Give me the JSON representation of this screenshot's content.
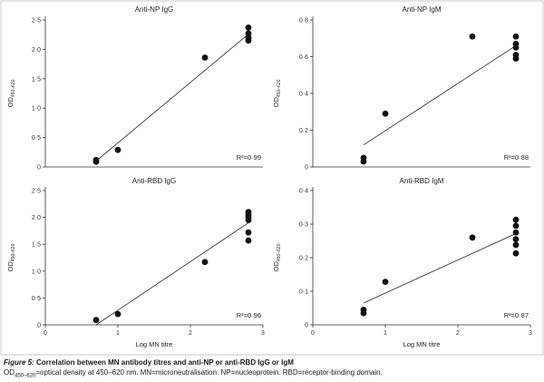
{
  "figure": {
    "label": "Figure 5:",
    "title": "Correlation between MN antibody titres and anti-NP or anti-RBD IgG or IgM",
    "footnote_od": "OD",
    "footnote_od_sub": "450–620",
    "footnote_text": "=optical density at 450–620 nm. MN=microneutralisation. NP=nucleoprotein. RBD=receptor-binding domain."
  },
  "chart_data": [
    {
      "type": "scatter",
      "title": "Anti-NP IgG",
      "xlabel": "",
      "ylabel": "OD",
      "ylabel_sub": "450–620",
      "xlim": [
        0,
        3
      ],
      "ylim": [
        0,
        2.5
      ],
      "x_ticks": [],
      "y_ticks": [
        0,
        0.5,
        1.0,
        1.5,
        2.0,
        2.5
      ],
      "y_tick_labels": [
        "0",
        "0·5",
        "1·0",
        "1·5",
        "2·0",
        "2·5"
      ],
      "points": [
        {
          "x": 0.7,
          "y": 0.09
        },
        {
          "x": 0.7,
          "y": 0.12
        },
        {
          "x": 1.0,
          "y": 0.29
        },
        {
          "x": 2.2,
          "y": 1.86
        },
        {
          "x": 2.8,
          "y": 2.15
        },
        {
          "x": 2.8,
          "y": 2.2
        },
        {
          "x": 2.8,
          "y": 2.27
        },
        {
          "x": 2.8,
          "y": 2.37
        }
      ],
      "fit_line": [
        {
          "x": 0.7,
          "y": 0.1
        },
        {
          "x": 2.8,
          "y": 2.26
        }
      ],
      "r2": "R²=0·99"
    },
    {
      "type": "scatter",
      "title": "Anti-NP IgM",
      "xlabel": "",
      "ylabel": "OD",
      "ylabel_sub": "450–620",
      "xlim": [
        0,
        3
      ],
      "ylim": [
        0,
        0.8
      ],
      "x_ticks": [],
      "y_ticks": [
        0,
        0.2,
        0.4,
        0.6,
        0.8
      ],
      "y_tick_labels": [
        "0",
        "0·2",
        "0·4",
        "0·6",
        "0·8"
      ],
      "points": [
        {
          "x": 0.7,
          "y": 0.03
        },
        {
          "x": 0.7,
          "y": 0.05
        },
        {
          "x": 1.0,
          "y": 0.29
        },
        {
          "x": 2.2,
          "y": 0.71
        },
        {
          "x": 2.8,
          "y": 0.59
        },
        {
          "x": 2.8,
          "y": 0.61
        },
        {
          "x": 2.8,
          "y": 0.65
        },
        {
          "x": 2.8,
          "y": 0.67
        },
        {
          "x": 2.8,
          "y": 0.71
        }
      ],
      "fit_line": [
        {
          "x": 0.7,
          "y": 0.12
        },
        {
          "x": 2.8,
          "y": 0.66
        }
      ],
      "r2": "R²=0·88"
    },
    {
      "type": "scatter",
      "title": "Anti-RBD IgG",
      "xlabel": "Log MN titre",
      "ylabel": "OD",
      "ylabel_sub": "450–620",
      "xlim": [
        0,
        3
      ],
      "ylim": [
        0,
        2.5
      ],
      "x_ticks": [
        0,
        1,
        2,
        3
      ],
      "y_ticks": [
        0,
        0.5,
        1.0,
        1.5,
        2.0,
        2.5
      ],
      "y_tick_labels": [
        "0",
        "0·5",
        "1·0",
        "1·5",
        "2·0",
        "2·5"
      ],
      "points": [
        {
          "x": 0.7,
          "y": 0.09
        },
        {
          "x": 1.0,
          "y": 0.2
        },
        {
          "x": 2.2,
          "y": 1.17
        },
        {
          "x": 2.8,
          "y": 1.57
        },
        {
          "x": 2.8,
          "y": 1.72
        },
        {
          "x": 2.8,
          "y": 1.95
        },
        {
          "x": 2.8,
          "y": 2.0
        },
        {
          "x": 2.8,
          "y": 2.05
        },
        {
          "x": 2.8,
          "y": 2.1
        }
      ],
      "fit_line": [
        {
          "x": 0.7,
          "y": 0.0
        },
        {
          "x": 2.8,
          "y": 1.9
        }
      ],
      "r2": "R²=0·96"
    },
    {
      "type": "scatter",
      "title": "Anti-RBD IgM",
      "xlabel": "Log MN titre",
      "ylabel": "OD",
      "ylabel_sub": "450–620",
      "xlim": [
        0,
        3
      ],
      "ylim": [
        0,
        0.4
      ],
      "x_ticks": [
        0,
        1,
        2,
        3
      ],
      "y_ticks": [
        0,
        0.1,
        0.2,
        0.3,
        0.4
      ],
      "y_tick_labels": [
        "0",
        "0·1",
        "0·2",
        "0·3",
        "0·4"
      ],
      "points": [
        {
          "x": 0.7,
          "y": 0.035
        },
        {
          "x": 0.7,
          "y": 0.045
        },
        {
          "x": 1.0,
          "y": 0.128
        },
        {
          "x": 2.2,
          "y": 0.26
        },
        {
          "x": 2.8,
          "y": 0.213
        },
        {
          "x": 2.8,
          "y": 0.238
        },
        {
          "x": 2.8,
          "y": 0.255
        },
        {
          "x": 2.8,
          "y": 0.275
        },
        {
          "x": 2.8,
          "y": 0.295
        },
        {
          "x": 2.8,
          "y": 0.313
        }
      ],
      "fit_line": [
        {
          "x": 0.7,
          "y": 0.065
        },
        {
          "x": 2.8,
          "y": 0.272
        }
      ],
      "r2": "R²=0·87"
    }
  ]
}
